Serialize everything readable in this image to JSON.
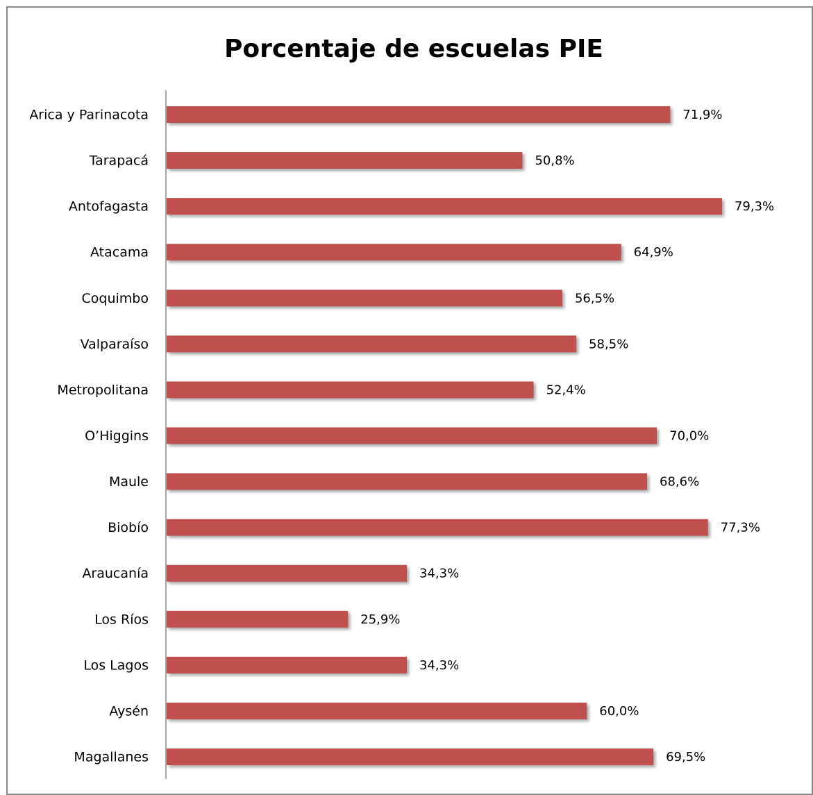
{
  "chart_data": {
    "type": "hbar",
    "title": "Porcentaje de escuelas PIE",
    "categories": [
      "Arica y Parinacota",
      "Tarapacá",
      "Antofagasta",
      "Atacama",
      "Coquimbo",
      "Valparaíso",
      "Metropolitana",
      "O’Higgins",
      "Maule",
      "Biobío",
      "Araucanía",
      "Los Ríos",
      "Los Lagos",
      "Aysén",
      "Magallanes"
    ],
    "values": [
      71.9,
      50.8,
      79.3,
      64.9,
      56.5,
      58.5,
      52.4,
      70.0,
      68.6,
      77.3,
      34.3,
      25.9,
      34.3,
      60.0,
      69.5
    ],
    "value_labels": [
      "71,9%",
      "50,8%",
      "79,3%",
      "64,9%",
      "56,5%",
      "58,5%",
      "52,4%",
      "70,0%",
      "68,6%",
      "77,3%",
      "34,3%",
      "25,9%",
      "34,3%",
      "60,0%",
      "69,5%"
    ],
    "color": "#c0504d",
    "xlim": [
      0,
      80
    ]
  }
}
